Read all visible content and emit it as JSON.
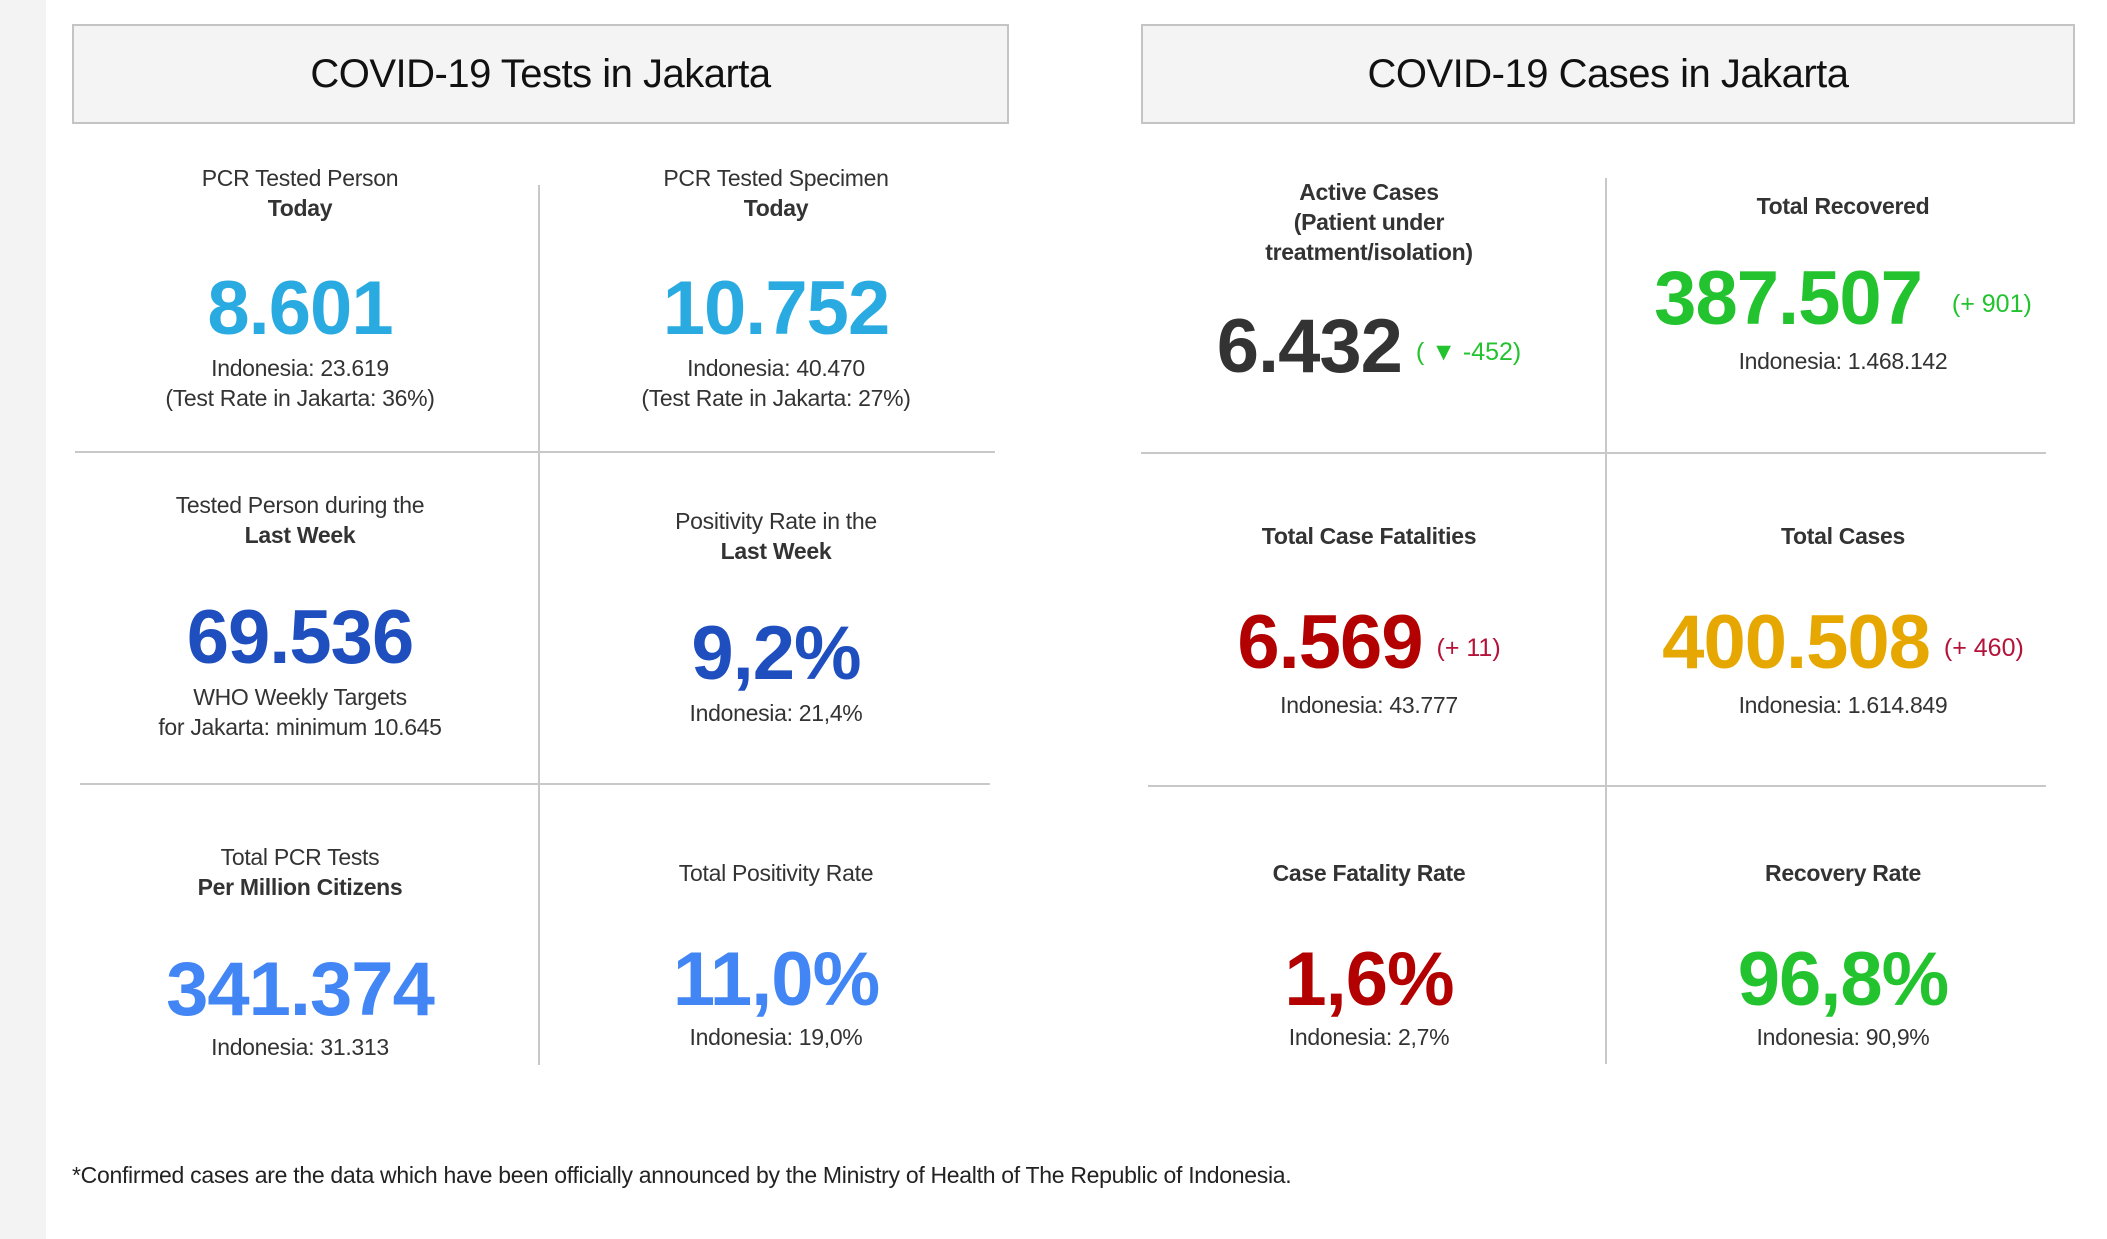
{
  "colors": {
    "light_blue": "#29abe2",
    "dark_blue": "#1f4fbf",
    "mid_blue": "#4285f4",
    "green": "#22c32e",
    "red": "#b30000",
    "amber": "#e6a800",
    "dark": "#333333",
    "crimson": "#b5123a"
  },
  "tests": {
    "title": "COVID-19 Tests in Jakarta",
    "cells": [
      {
        "label1": "PCR Tested Person",
        "label2": "Today",
        "value": "8.601",
        "sub1": "Indonesia: 23.619",
        "sub2": "(Test Rate in Jakarta: 36%)"
      },
      {
        "label1": "PCR Tested Specimen",
        "label2": "Today",
        "value": "10.752",
        "sub1": "Indonesia: 40.470",
        "sub2": "(Test Rate in Jakarta: 27%)"
      },
      {
        "label1": "Tested Person during the",
        "label2": "Last Week",
        "value": "69.536",
        "sub1": "WHO Weekly Targets",
        "sub2": "for Jakarta: minimum 10.645"
      },
      {
        "label1": "Positivity Rate in the",
        "label2": "Last Week",
        "value": "9,2%",
        "sub1": "Indonesia: 21,4%"
      },
      {
        "label1": "Total PCR Tests",
        "label2": "Per Million Citizens",
        "value": "341.374",
        "sub1": "Indonesia: 31.313"
      },
      {
        "label1": "Total Positivity Rate",
        "value": "11,0%",
        "sub1": "Indonesia: 19,0%"
      }
    ]
  },
  "cases": {
    "title": "COVID-19 Cases in Jakarta",
    "cells": [
      {
        "label1": "Active Cases",
        "label2": "(Patient under",
        "label3": "treatment/isolation)",
        "value": "6.432",
        "delta": "( ▼ -452)",
        "delta_icon": "down-triangle-icon"
      },
      {
        "label1": "Total Recovered",
        "value": "387.507",
        "delta": "(+ 901)",
        "sub1": "Indonesia: 1.468.142"
      },
      {
        "label1": "Total Case Fatalities",
        "value": "6.569",
        "delta": "(+ 11)",
        "sub1": "Indonesia: 43.777"
      },
      {
        "label1": "Total Cases",
        "value": "400.508",
        "delta": "(+ 460)",
        "sub1": "Indonesia: 1.614.849"
      },
      {
        "label1": "Case Fatality Rate",
        "value": "1,6%",
        "sub1": "Indonesia: 2,7%"
      },
      {
        "label1": "Recovery Rate",
        "value": "96,8%",
        "sub1": "Indonesia: 90,9%"
      }
    ]
  },
  "footnote": "*Confirmed cases are the data which have been officially announced by the Ministry of Health of The Republic of Indonesia."
}
